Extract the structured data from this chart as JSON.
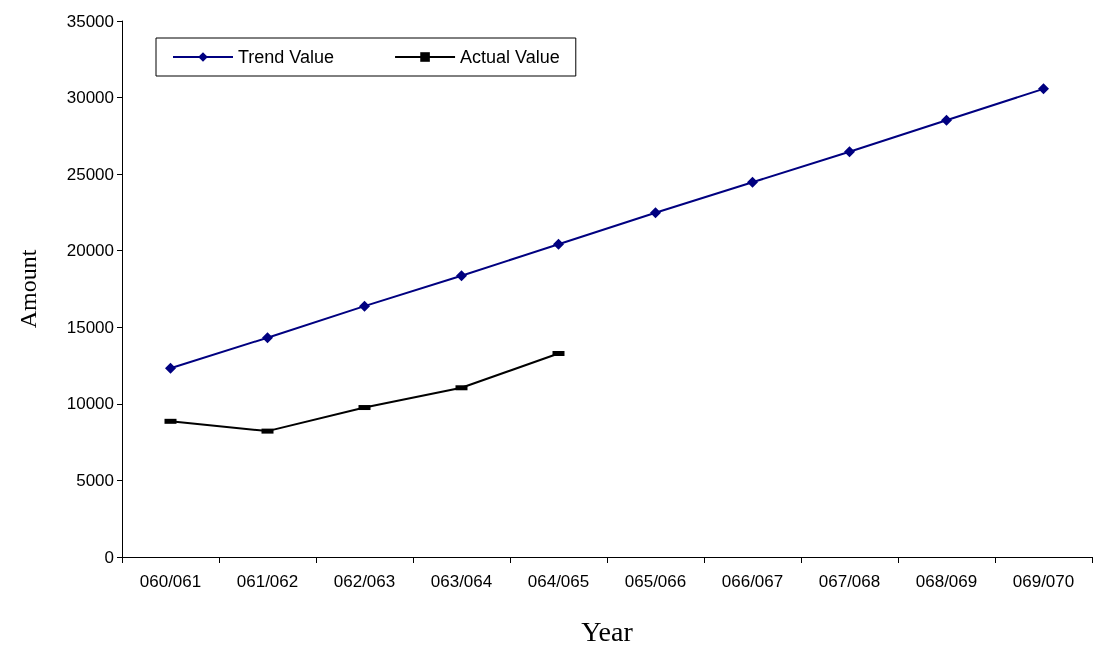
{
  "chart_data": {
    "type": "line",
    "xlabel": "Year",
    "ylabel": "Amount",
    "categories": [
      "060/061",
      "061/062",
      "062/063",
      "063/064",
      "064/065",
      "065/066",
      "066/067",
      "067/068",
      "068/069",
      "069/070"
    ],
    "series": [
      {
        "name": "Trend Value",
        "color": "#000080",
        "marker": "diamond",
        "values": [
          12330,
          14320,
          16380,
          18370,
          20420,
          22480,
          24470,
          26460,
          28520,
          30570
        ]
      },
      {
        "name": "Actual Value",
        "color": "#000000",
        "marker": "square",
        "values": [
          8860,
          8220,
          9760,
          11050,
          13290,
          null,
          null,
          null,
          null,
          null
        ]
      }
    ],
    "ylim": [
      0,
      35000
    ],
    "yticks": [
      0,
      5000,
      10000,
      15000,
      20000,
      25000,
      30000,
      35000
    ],
    "grid": false,
    "legend": "top left"
  }
}
